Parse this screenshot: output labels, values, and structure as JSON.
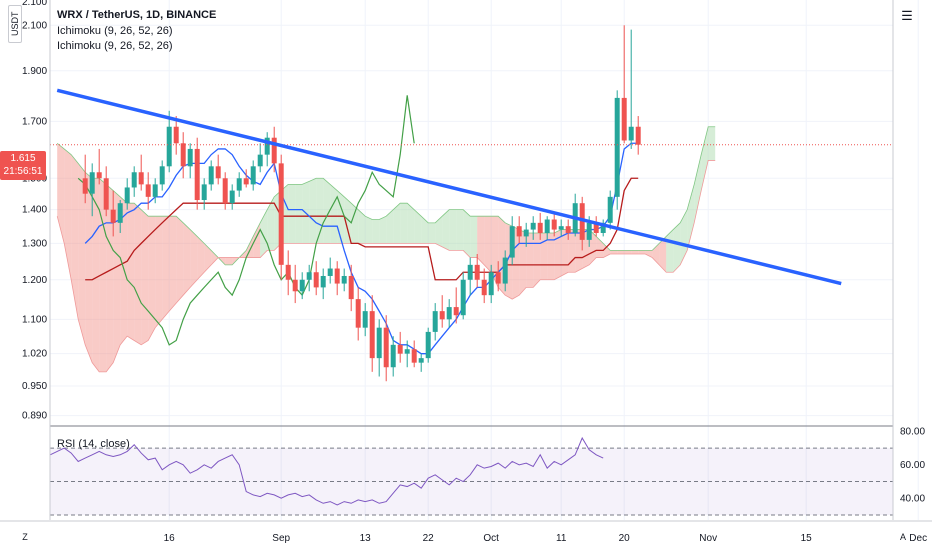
{
  "header": {
    "title": "WRX / TetherUS, 1D, BINANCE",
    "indicators": [
      "Ichimoku (9, 26, 52, 26)",
      "Ichimoku (9, 26, 52, 26)"
    ],
    "currency_badge": "USDT"
  },
  "price_marker": {
    "price": "1.615",
    "countdown": "21:56:51"
  },
  "rsi": {
    "label": "RSI (14, close)"
  },
  "footer": {
    "left_icon": "Z",
    "right_icon": "A"
  },
  "colors": {
    "up": "#26a69a",
    "down": "#ef5350",
    "trendline": "#2962ff",
    "tenkan": "#2962ff",
    "kijun": "#b71c1c",
    "chikou": "#43a047",
    "cloud_bull": "#a5d6a7",
    "cloud_bear": "#f28b82",
    "rsi_line": "#7e57c2"
  },
  "chart_data": [
    {
      "type": "candlestick",
      "title": "WRX / TetherUS, 1D, BINANCE",
      "x_ticks": [
        {
          "label": "16",
          "day": 16
        },
        {
          "label": "Sep",
          "day": 32
        },
        {
          "label": "13",
          "day": 44
        },
        {
          "label": "22",
          "day": 53
        },
        {
          "label": "Oct",
          "day": 62
        },
        {
          "label": "11",
          "day": 72
        },
        {
          "label": "20",
          "day": 81
        },
        {
          "label": "Nov",
          "day": 93
        },
        {
          "label": "15",
          "day": 107
        },
        {
          "label": "Dec",
          "day": 123
        }
      ],
      "y_ticks": [
        "2.100",
        "1.900",
        "1.700",
        "1.500",
        "1.400",
        "1.300",
        "1.200",
        "1.100",
        "1.020",
        "0.950",
        "0.890"
      ],
      "y_top_partial": "2.100",
      "ylim_scale": "log",
      "ohlc": [
        [
          1.5,
          1.58,
          1.42,
          1.45
        ],
        [
          1.45,
          1.55,
          1.38,
          1.52
        ],
        [
          1.52,
          1.6,
          1.48,
          1.5
        ],
        [
          1.5,
          1.54,
          1.38,
          1.4
        ],
        [
          1.4,
          1.46,
          1.32,
          1.36
        ],
        [
          1.36,
          1.43,
          1.33,
          1.42
        ],
        [
          1.42,
          1.5,
          1.4,
          1.47
        ],
        [
          1.47,
          1.54,
          1.44,
          1.52
        ],
        [
          1.52,
          1.58,
          1.46,
          1.48
        ],
        [
          1.48,
          1.52,
          1.4,
          1.44
        ],
        [
          1.44,
          1.5,
          1.42,
          1.48
        ],
        [
          1.48,
          1.56,
          1.46,
          1.54
        ],
        [
          1.54,
          1.74,
          1.52,
          1.68
        ],
        [
          1.68,
          1.72,
          1.58,
          1.62
        ],
        [
          1.62,
          1.66,
          1.5,
          1.54
        ],
        [
          1.54,
          1.62,
          1.5,
          1.6
        ],
        [
          1.6,
          1.64,
          1.4,
          1.43
        ],
        [
          1.43,
          1.5,
          1.4,
          1.48
        ],
        [
          1.48,
          1.56,
          1.46,
          1.54
        ],
        [
          1.54,
          1.58,
          1.48,
          1.5
        ],
        [
          1.5,
          1.52,
          1.4,
          1.42
        ],
        [
          1.42,
          1.48,
          1.4,
          1.46
        ],
        [
          1.46,
          1.52,
          1.44,
          1.5
        ],
        [
          1.5,
          1.53,
          1.47,
          1.48
        ],
        [
          1.48,
          1.56,
          1.46,
          1.54
        ],
        [
          1.54,
          1.62,
          1.52,
          1.58
        ],
        [
          1.58,
          1.66,
          1.54,
          1.64
        ],
        [
          1.64,
          1.68,
          1.52,
          1.55
        ],
        [
          1.55,
          1.58,
          1.2,
          1.24
        ],
        [
          1.24,
          1.28,
          1.16,
          1.2
        ],
        [
          1.2,
          1.24,
          1.14,
          1.17
        ],
        [
          1.17,
          1.22,
          1.15,
          1.2
        ],
        [
          1.2,
          1.24,
          1.17,
          1.22
        ],
        [
          1.22,
          1.25,
          1.16,
          1.18
        ],
        [
          1.18,
          1.23,
          1.15,
          1.21
        ],
        [
          1.21,
          1.26,
          1.19,
          1.23
        ],
        [
          1.23,
          1.25,
          1.16,
          1.19
        ],
        [
          1.19,
          1.23,
          1.17,
          1.21
        ],
        [
          1.21,
          1.24,
          1.12,
          1.15
        ],
        [
          1.15,
          1.18,
          1.05,
          1.08
        ],
        [
          1.08,
          1.14,
          1.06,
          1.12
        ],
        [
          1.12,
          1.16,
          0.98,
          1.01
        ],
        [
          1.01,
          1.1,
          0.97,
          1.08
        ],
        [
          1.08,
          1.11,
          0.96,
          0.99
        ],
        [
          0.99,
          1.06,
          0.97,
          1.04
        ],
        [
          1.04,
          1.07,
          1.0,
          1.02
        ],
        [
          1.02,
          1.05,
          0.99,
          1.03
        ],
        [
          1.03,
          1.05,
          0.99,
          1.0
        ],
        [
          1.0,
          1.02,
          0.98,
          1.01
        ],
        [
          1.01,
          1.08,
          1.0,
          1.07
        ],
        [
          1.07,
          1.14,
          1.05,
          1.12
        ],
        [
          1.12,
          1.16,
          1.08,
          1.1
        ],
        [
          1.1,
          1.15,
          1.08,
          1.13
        ],
        [
          1.13,
          1.18,
          1.09,
          1.11
        ],
        [
          1.11,
          1.22,
          1.1,
          1.2
        ],
        [
          1.2,
          1.26,
          1.16,
          1.24
        ],
        [
          1.24,
          1.27,
          1.18,
          1.2
        ],
        [
          1.2,
          1.23,
          1.14,
          1.16
        ],
        [
          1.16,
          1.24,
          1.14,
          1.22
        ],
        [
          1.22,
          1.25,
          1.17,
          1.19
        ],
        [
          1.19,
          1.28,
          1.17,
          1.26
        ],
        [
          1.26,
          1.38,
          1.24,
          1.35
        ],
        [
          1.35,
          1.38,
          1.3,
          1.32
        ],
        [
          1.32,
          1.36,
          1.29,
          1.34
        ],
        [
          1.34,
          1.38,
          1.31,
          1.36
        ],
        [
          1.36,
          1.39,
          1.31,
          1.33
        ],
        [
          1.33,
          1.38,
          1.31,
          1.37
        ],
        [
          1.37,
          1.39,
          1.32,
          1.34
        ],
        [
          1.34,
          1.37,
          1.32,
          1.35
        ],
        [
          1.35,
          1.37,
          1.31,
          1.33
        ],
        [
          1.33,
          1.45,
          1.32,
          1.42
        ],
        [
          1.42,
          1.44,
          1.28,
          1.31
        ],
        [
          1.31,
          1.38,
          1.29,
          1.36
        ],
        [
          1.36,
          1.38,
          1.32,
          1.33
        ],
        [
          1.33,
          1.37,
          1.32,
          1.36
        ],
        [
          1.36,
          1.46,
          1.34,
          1.44
        ],
        [
          1.44,
          1.82,
          1.4,
          1.79
        ],
        [
          1.79,
          2.1,
          1.62,
          1.63
        ],
        [
          1.63,
          2.08,
          1.6,
          1.68
        ],
        [
          1.68,
          1.72,
          1.58,
          1.615
        ]
      ],
      "series": [
        {
          "name": "tenkan",
          "values": [
            1.3,
            1.32,
            1.35,
            1.36,
            1.36,
            1.37,
            1.39,
            1.4,
            1.42,
            1.42,
            1.44,
            1.44,
            1.47,
            1.51,
            1.54,
            1.55,
            1.55,
            1.55,
            1.58,
            1.6,
            1.6,
            1.58,
            1.54,
            1.51,
            1.49,
            1.48,
            1.52,
            1.55,
            1.45,
            1.4,
            1.4,
            1.4,
            1.38,
            1.36,
            1.35,
            1.35,
            1.35,
            1.28,
            1.22,
            1.18,
            1.17,
            1.15,
            1.12,
            1.09,
            1.05,
            1.04,
            1.04,
            1.03,
            1.02,
            1.02,
            1.04,
            1.06,
            1.08,
            1.1,
            1.13,
            1.16,
            1.18,
            1.18,
            1.2,
            1.22,
            1.24,
            1.28,
            1.3,
            1.3,
            1.3,
            1.3,
            1.31,
            1.31,
            1.32,
            1.33,
            1.33,
            1.33,
            1.34,
            1.34,
            1.35,
            1.38,
            1.48,
            1.6,
            1.62,
            1.62
          ]
        },
        {
          "name": "kijun",
          "values": [
            1.2,
            1.2,
            1.21,
            1.22,
            1.23,
            1.24,
            1.25,
            1.28,
            1.3,
            1.32,
            1.34,
            1.36,
            1.38,
            1.4,
            1.42,
            1.42,
            1.42,
            1.42,
            1.42,
            1.42,
            1.42,
            1.42,
            1.42,
            1.42,
            1.42,
            1.42,
            1.42,
            1.42,
            1.38,
            1.38,
            1.38,
            1.38,
            1.38,
            1.38,
            1.38,
            1.38,
            1.38,
            1.38,
            1.3,
            1.3,
            1.29,
            1.29,
            1.29,
            1.29,
            1.29,
            1.29,
            1.29,
            1.29,
            1.29,
            1.29,
            1.2,
            1.2,
            1.2,
            1.2,
            1.22,
            1.22,
            1.22,
            1.22,
            1.22,
            1.22,
            1.24,
            1.24,
            1.24,
            1.24,
            1.24,
            1.24,
            1.24,
            1.24,
            1.24,
            1.24,
            1.26,
            1.26,
            1.27,
            1.28,
            1.28,
            1.3,
            1.34,
            1.46,
            1.5,
            1.5
          ]
        },
        {
          "name": "chikou",
          "values": [
            1.5,
            1.48,
            1.44,
            1.4,
            1.32,
            1.28,
            1.26,
            1.2,
            1.18,
            1.14,
            1.12,
            1.1,
            1.08,
            1.04,
            1.05,
            1.1,
            1.14,
            1.16,
            1.18,
            1.2,
            1.22,
            1.18,
            1.16,
            1.2,
            1.26,
            1.3,
            1.34,
            1.3,
            1.24,
            1.2,
            1.22,
            1.18,
            1.16,
            1.2,
            1.3,
            1.36,
            1.4,
            1.44,
            1.38,
            1.36,
            1.42,
            1.46,
            1.52,
            1.48,
            1.46,
            1.44,
            1.58,
            1.8,
            1.62
          ]
        },
        {
          "name": "cloud_top",
          "values": [
            1.62,
            1.6,
            1.58,
            1.55,
            1.52,
            1.5,
            1.5,
            1.48,
            1.46,
            1.44,
            1.42,
            1.42,
            1.4,
            1.38,
            1.38,
            1.38,
            1.38,
            1.38,
            1.36,
            1.34,
            1.32,
            1.3,
            1.28,
            1.26,
            1.24,
            1.24,
            1.26,
            1.28,
            1.32,
            1.36,
            1.4,
            1.44,
            1.46,
            1.48,
            1.48,
            1.48,
            1.49,
            1.5,
            1.5,
            1.48,
            1.46,
            1.44,
            1.42,
            1.4,
            1.38,
            1.37,
            1.37,
            1.38,
            1.4,
            1.42,
            1.42,
            1.4,
            1.38,
            1.36,
            1.36,
            1.38,
            1.4,
            1.4,
            1.4,
            1.38,
            1.38,
            1.38,
            1.38,
            1.38,
            1.36,
            1.35,
            1.34,
            1.33,
            1.33,
            1.33,
            1.33,
            1.33,
            1.34,
            1.34,
            1.34,
            1.34,
            1.34,
            1.32,
            1.3,
            1.28,
            1.28,
            1.28,
            1.28,
            1.28,
            1.28,
            1.28,
            1.3,
            1.32,
            1.34,
            1.36,
            1.4,
            1.48,
            1.58,
            1.68,
            1.68
          ]
        },
        {
          "name": "cloud_bottom",
          "values": [
            1.38,
            1.3,
            1.2,
            1.1,
            1.04,
            1.0,
            0.98,
            0.98,
            1.0,
            1.04,
            1.06,
            1.05,
            1.04,
            1.05,
            1.08,
            1.1,
            1.12,
            1.14,
            1.16,
            1.18,
            1.2,
            1.22,
            1.24,
            1.26,
            1.26,
            1.26,
            1.26,
            1.26,
            1.26,
            1.26,
            1.28,
            1.28,
            1.3,
            1.3,
            1.3,
            1.3,
            1.3,
            1.3,
            1.3,
            1.3,
            1.3,
            1.3,
            1.3,
            1.3,
            1.3,
            1.3,
            1.3,
            1.3,
            1.3,
            1.3,
            1.3,
            1.3,
            1.3,
            1.3,
            1.3,
            1.29,
            1.28,
            1.28,
            1.28,
            1.26,
            1.26,
            1.24,
            1.22,
            1.18,
            1.16,
            1.15,
            1.16,
            1.18,
            1.18,
            1.2,
            1.2,
            1.2,
            1.21,
            1.22,
            1.22,
            1.23,
            1.24,
            1.26,
            1.26,
            1.27,
            1.27,
            1.27,
            1.27,
            1.27,
            1.27,
            1.26,
            1.24,
            1.22,
            1.22,
            1.24,
            1.28,
            1.36,
            1.46,
            1.56,
            1.56
          ]
        }
      ],
      "trendline": [
        {
          "day": 0,
          "price": 1.82
        },
        {
          "day": 112,
          "price": 1.19
        }
      ],
      "last_price_line": 1.615
    },
    {
      "type": "line",
      "title": "RSI (14, close)",
      "y_ticks": [
        "80.00",
        "60.00",
        "40.00"
      ],
      "bands": {
        "upper": 70,
        "middle": 50,
        "lower": 30
      },
      "ylim": [
        27,
        82
      ],
      "values": [
        66,
        68,
        70,
        67,
        62,
        64,
        66,
        68,
        66,
        65,
        66,
        68,
        72,
        67,
        63,
        64,
        57,
        60,
        62,
        60,
        55,
        57,
        60,
        58,
        62,
        64,
        66,
        60,
        44,
        42,
        41,
        43,
        42,
        40,
        42,
        43,
        41,
        42,
        39,
        37,
        38,
        36,
        38,
        37,
        39,
        38,
        39,
        37,
        38,
        43,
        48,
        47,
        49,
        46,
        52,
        54,
        51,
        48,
        52,
        50,
        54,
        60,
        58,
        59,
        61,
        58,
        62,
        60,
        61,
        59,
        66,
        58,
        62,
        60,
        63,
        66,
        76,
        69,
        66,
        64
      ]
    }
  ]
}
